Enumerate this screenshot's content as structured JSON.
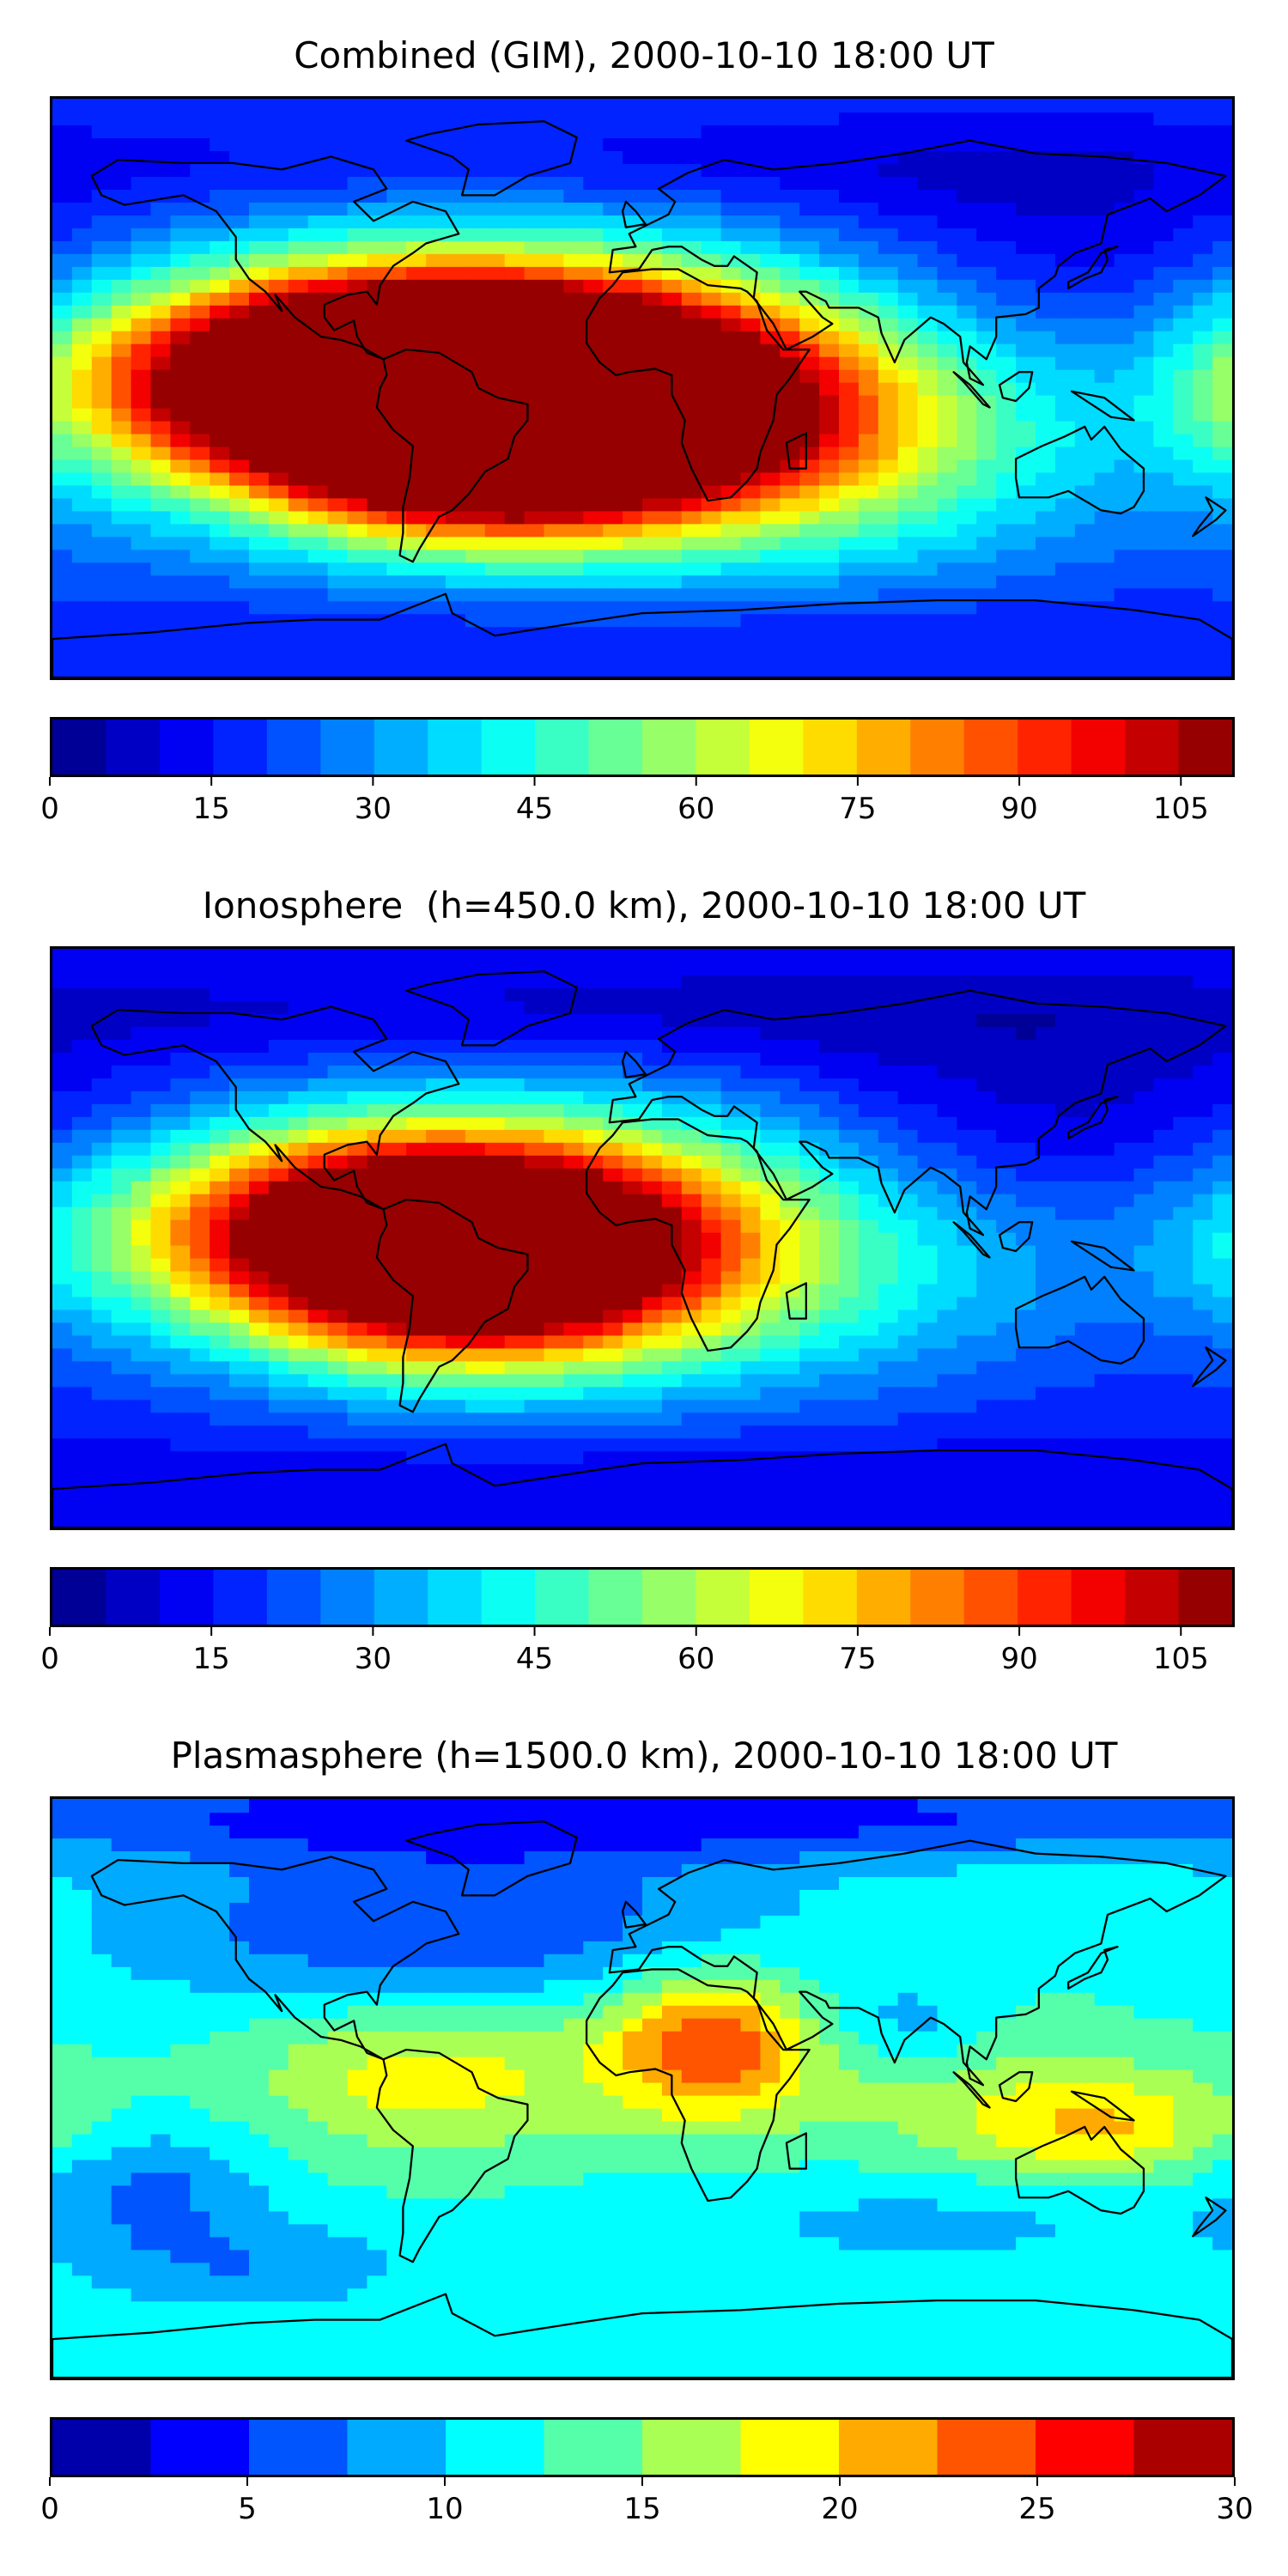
{
  "figure": {
    "panels": [
      {
        "title": "Combined (GIM), 2000-10-10 18:00 UT",
        "colorbar": {
          "min": 0,
          "max": 110,
          "step": 5,
          "ticks": [
            "0",
            "15",
            "30",
            "45",
            "60",
            "75",
            "90",
            "105"
          ],
          "tick_values": [
            0,
            15,
            30,
            45,
            60,
            75,
            90,
            105
          ]
        }
      },
      {
        "title": "Ionosphere  (h=450.0 km), 2000-10-10 18:00 UT",
        "colorbar": {
          "min": 0,
          "max": 110,
          "step": 5,
          "ticks": [
            "0",
            "15",
            "30",
            "45",
            "60",
            "75",
            "90",
            "105"
          ],
          "tick_values": [
            0,
            15,
            30,
            45,
            60,
            75,
            90,
            105
          ]
        }
      },
      {
        "title": "Plasmasphere (h=1500.0 km), 2000-10-10 18:00 UT",
        "colorbar": {
          "min": 0,
          "max": 30,
          "step": 2.5,
          "ticks": [
            "0",
            "5",
            "10",
            "15",
            "20",
            "25",
            "30"
          ],
          "tick_values": [
            0,
            5,
            10,
            15,
            20,
            25,
            30
          ]
        }
      }
    ]
  },
  "chart_data": [
    {
      "type": "heatmap",
      "title": "Combined (GIM), 2000-10-10 18:00 UT",
      "colormap": "jet",
      "zlim": [
        0,
        110
      ],
      "background": 20,
      "features": [
        {
          "lon": -68,
          "lat": 8,
          "value": 92,
          "sx": 55,
          "sy": 20
        },
        {
          "lon": -50,
          "lat": -14,
          "value": 100,
          "sx": 45,
          "sy": 20
        },
        {
          "lon": -35,
          "lat": 0,
          "value": 55,
          "sx": 85,
          "sy": 30
        },
        {
          "lon": 5,
          "lat": -5,
          "value": 40,
          "sx": 55,
          "sy": 25
        },
        {
          "lon": -120,
          "lat": 0,
          "value": 30,
          "sx": 60,
          "sy": 20
        },
        {
          "lon": 60,
          "lat": -20,
          "value": 20,
          "sx": 60,
          "sy": 25
        },
        {
          "lon": 120,
          "lat": 45,
          "value": -10,
          "sx": 60,
          "sy": 25
        },
        {
          "lon": 130,
          "lat": 0,
          "value": -6,
          "sx": 40,
          "sy": 20
        },
        {
          "lon": 0,
          "lat": 70,
          "value": -8,
          "sx": 180,
          "sy": 12
        },
        {
          "lon": 0,
          "lat": -75,
          "value": -6,
          "sx": 180,
          "sy": 10
        }
      ]
    },
    {
      "type": "heatmap",
      "title": "Ionosphere  (h=450.0 km), 2000-10-10 18:00 UT",
      "colormap": "jet",
      "zlim": [
        0,
        110
      ],
      "background": 15,
      "features": [
        {
          "lon": -68,
          "lat": 8,
          "value": 65,
          "sx": 50,
          "sy": 20
        },
        {
          "lon": -52,
          "lat": -12,
          "value": 72,
          "sx": 45,
          "sy": 20
        },
        {
          "lon": -40,
          "lat": 0,
          "value": 40,
          "sx": 80,
          "sy": 30
        },
        {
          "lon": -120,
          "lat": 0,
          "value": 20,
          "sx": 60,
          "sy": 20
        },
        {
          "lon": 10,
          "lat": 5,
          "value": 15,
          "sx": 45,
          "sy": 25
        },
        {
          "lon": 70,
          "lat": -15,
          "value": 12,
          "sx": 60,
          "sy": 25
        },
        {
          "lon": 120,
          "lat": 40,
          "value": -8,
          "sx": 60,
          "sy": 25
        },
        {
          "lon": 0,
          "lat": 70,
          "value": -8,
          "sx": 180,
          "sy": 12
        },
        {
          "lon": 0,
          "lat": -75,
          "value": -6,
          "sx": 180,
          "sy": 10
        }
      ]
    },
    {
      "type": "heatmap",
      "title": "Plasmasphere (h=1500.0 km), 2000-10-10 18:00 UT",
      "colormap": "jet",
      "zlim": [
        0,
        30
      ],
      "background": 12,
      "features": [
        {
          "lon": -60,
          "lat": 50,
          "value": -7,
          "sx": 70,
          "sy": 20
        },
        {
          "lon": 0,
          "lat": 85,
          "value": -8,
          "sx": 180,
          "sy": 10
        },
        {
          "lon": 20,
          "lat": 15,
          "value": 12,
          "sx": 22,
          "sy": 16
        },
        {
          "lon": -65,
          "lat": 5,
          "value": 7,
          "sx": 40,
          "sy": 18
        },
        {
          "lon": 140,
          "lat": -12,
          "value": 7,
          "sx": 30,
          "sy": 12
        },
        {
          "lon": 90,
          "lat": 0,
          "value": 3,
          "sx": 55,
          "sy": 20
        },
        {
          "lon": 80,
          "lat": 20,
          "value": -4,
          "sx": 20,
          "sy": 10
        },
        {
          "lon": -150,
          "lat": -30,
          "value": -5,
          "sx": 25,
          "sy": 14
        },
        {
          "lon": -120,
          "lat": -55,
          "value": -4,
          "sx": 35,
          "sy": 10
        },
        {
          "lon": 90,
          "lat": -40,
          "value": -3,
          "sx": 60,
          "sy": 12
        }
      ]
    }
  ]
}
